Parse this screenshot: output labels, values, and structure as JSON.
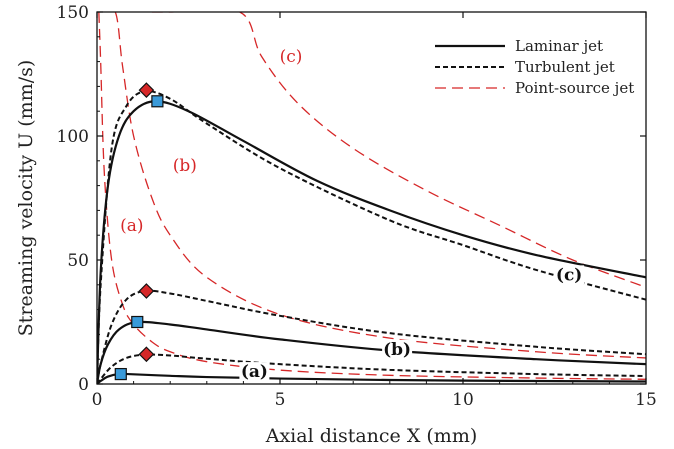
{
  "chart_data": {
    "type": "line",
    "xlabel": "Axial distance X (mm)",
    "ylabel": "Streaming velocity U (mm/s)",
    "xlim": [
      0,
      15
    ],
    "ylim": [
      0,
      150
    ],
    "xticks": [
      "0",
      "5",
      "10",
      "15"
    ],
    "yticks": [
      "0",
      "50",
      "100",
      "150"
    ],
    "grid": false,
    "legend_position": "top-right",
    "legend": [
      {
        "label": "Laminar jet",
        "style": "solid",
        "color": "#111111"
      },
      {
        "label": "Turbulent jet",
        "style": "dotted",
        "color": "#111111"
      },
      {
        "label": "Point-source jet",
        "style": "dashed",
        "color": "#d62728"
      }
    ],
    "series": [
      {
        "style": "laminar",
        "case": "(a)",
        "points": [
          [
            0,
            0
          ],
          [
            0.1,
            1.2
          ],
          [
            0.3,
            3
          ],
          [
            0.6,
            4
          ],
          [
            1,
            3.9
          ],
          [
            2,
            3.3
          ],
          [
            3,
            2.8
          ],
          [
            5,
            2.2
          ],
          [
            8,
            1.6
          ],
          [
            12,
            1.2
          ],
          [
            15,
            1
          ]
        ]
      },
      {
        "style": "turbulent",
        "case": "(a)",
        "points": [
          [
            0,
            0
          ],
          [
            0.1,
            2
          ],
          [
            0.4,
            7
          ],
          [
            0.8,
            10.5
          ],
          [
            1.3,
            11.8
          ],
          [
            2,
            11.5
          ],
          [
            3,
            10.2
          ],
          [
            5,
            8
          ],
          [
            8,
            5.7
          ],
          [
            12,
            4
          ],
          [
            15,
            3.2
          ]
        ]
      },
      {
        "style": "pointsource",
        "case": "(a)",
        "points": [
          [
            0.05,
            150
          ],
          [
            0.1,
            130
          ],
          [
            0.2,
            85
          ],
          [
            0.4,
            50
          ],
          [
            0.7,
            32
          ],
          [
            1,
            24
          ],
          [
            1.5,
            17
          ],
          [
            2,
            13
          ],
          [
            3,
            9
          ],
          [
            5,
            5.6
          ],
          [
            8,
            3.5
          ],
          [
            12,
            2.4
          ],
          [
            15,
            1.9
          ]
        ]
      },
      {
        "style": "laminar",
        "case": "(b)",
        "points": [
          [
            0,
            0
          ],
          [
            0.1,
            8
          ],
          [
            0.3,
            16
          ],
          [
            0.6,
            22
          ],
          [
            1.1,
            25
          ],
          [
            2,
            24
          ],
          [
            3,
            22
          ],
          [
            5,
            18
          ],
          [
            8,
            13.5
          ],
          [
            12,
            10
          ],
          [
            15,
            8
          ]
        ]
      },
      {
        "style": "turbulent",
        "case": "(b)",
        "points": [
          [
            0,
            0
          ],
          [
            0.1,
            8
          ],
          [
            0.4,
            24
          ],
          [
            0.8,
            34
          ],
          [
            1.3,
            37.5
          ],
          [
            2,
            36.5
          ],
          [
            3,
            33.5
          ],
          [
            5,
            27.5
          ],
          [
            8,
            20.5
          ],
          [
            12,
            15
          ],
          [
            15,
            12
          ]
        ]
      },
      {
        "style": "pointsource",
        "case": "(b)",
        "points": [
          [
            0.1,
            150
          ],
          [
            0.5,
            150
          ],
          [
            0.7,
            128
          ],
          [
            1,
            100
          ],
          [
            1.5,
            75
          ],
          [
            2,
            60
          ],
          [
            3,
            43
          ],
          [
            5,
            28
          ],
          [
            8,
            18.5
          ],
          [
            12,
            13
          ],
          [
            15,
            10.5
          ]
        ]
      },
      {
        "style": "laminar",
        "case": "(c)",
        "points": [
          [
            0,
            0
          ],
          [
            0.1,
            45
          ],
          [
            0.3,
            80
          ],
          [
            0.6,
            100
          ],
          [
            1.0,
            110
          ],
          [
            1.6,
            114
          ],
          [
            2.5,
            110
          ],
          [
            4,
            98
          ],
          [
            6,
            82
          ],
          [
            8,
            70
          ],
          [
            10,
            60
          ],
          [
            12,
            52
          ],
          [
            15,
            43
          ]
        ]
      },
      {
        "style": "turbulent",
        "case": "(c)",
        "points": [
          [
            0,
            0
          ],
          [
            0.1,
            40
          ],
          [
            0.4,
            95
          ],
          [
            0.8,
            112
          ],
          [
            1.3,
            118
          ],
          [
            2,
            115
          ],
          [
            3,
            105
          ],
          [
            5,
            87
          ],
          [
            8,
            66
          ],
          [
            10,
            56
          ],
          [
            12,
            46
          ],
          [
            15,
            34
          ]
        ]
      },
      {
        "style": "pointsource",
        "case": "(c)",
        "points": [
          [
            1.5,
            150
          ],
          [
            2,
            150
          ],
          [
            3.9,
            150
          ],
          [
            4.5,
            132
          ],
          [
            5.5,
            113
          ],
          [
            7,
            95
          ],
          [
            9,
            78
          ],
          [
            11,
            64
          ],
          [
            13,
            50
          ],
          [
            15,
            39
          ]
        ]
      }
    ],
    "peak_markers": [
      {
        "style": "turbulent",
        "shape": "diamond",
        "color": "#d62728",
        "x": 1.35,
        "y": 118.5
      },
      {
        "style": "laminar",
        "shape": "square",
        "color": "#3a9ad9",
        "x": 1.65,
        "y": 114
      },
      {
        "style": "turbulent",
        "shape": "diamond",
        "color": "#d62728",
        "x": 1.35,
        "y": 37.5
      },
      {
        "style": "laminar",
        "shape": "square",
        "color": "#3a9ad9",
        "x": 1.1,
        "y": 25
      },
      {
        "style": "turbulent",
        "shape": "diamond",
        "color": "#d62728",
        "x": 1.35,
        "y": 12
      },
      {
        "style": "laminar",
        "shape": "square",
        "color": "#3a9ad9",
        "x": 0.65,
        "y": 4
      }
    ],
    "annotations": [
      {
        "text": "(c)",
        "color": "red",
        "x": 5.3,
        "y": 131
      },
      {
        "text": "(b)",
        "color": "red",
        "x": 2.4,
        "y": 87
      },
      {
        "text": "(a)",
        "color": "red",
        "x": 0.95,
        "y": 63
      },
      {
        "text": "(c)",
        "color": "black",
        "x": 12.9,
        "y": 43
      },
      {
        "text": "(b)",
        "color": "black",
        "x": 8.2,
        "y": 13
      },
      {
        "text": "(a)",
        "color": "black",
        "x": 4.3,
        "y": 4
      }
    ]
  }
}
